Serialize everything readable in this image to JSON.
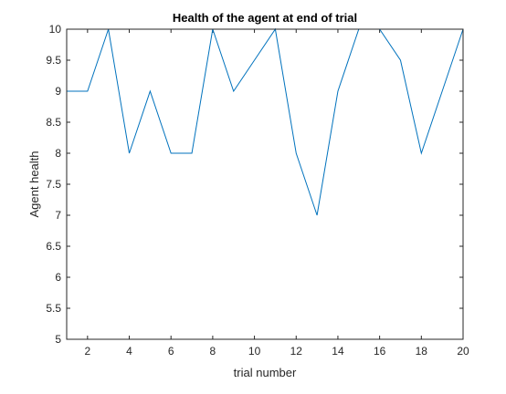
{
  "chart_data": {
    "type": "line",
    "title": "Health of the agent at end of trial",
    "xlabel": "trial number",
    "ylabel": "Agent health",
    "xlim": [
      1,
      20
    ],
    "ylim": [
      5,
      10
    ],
    "xticks": [
      2,
      4,
      6,
      8,
      10,
      12,
      14,
      16,
      18,
      20
    ],
    "xtick_labels": [
      "2",
      "4",
      "6",
      "8",
      "10",
      "12",
      "14",
      "16",
      "18",
      "20"
    ],
    "yticks": [
      5,
      5.5,
      6,
      6.5,
      7,
      7.5,
      8,
      8.5,
      9,
      9.5,
      10
    ],
    "ytick_labels": [
      "5",
      "5.5",
      "6",
      "6.5",
      "7",
      "7.5",
      "8",
      "8.5",
      "9",
      "9.5",
      "10"
    ],
    "grid": false,
    "series": [
      {
        "x": [
          1,
          2,
          3,
          4,
          5,
          6,
          7,
          8,
          9,
          10,
          11,
          12,
          13,
          14,
          15,
          16,
          17,
          18,
          19,
          20
        ],
        "values": [
          9,
          9,
          10,
          8,
          9,
          8,
          8,
          10,
          9,
          9.5,
          10,
          8,
          7,
          9,
          10,
          10,
          9.5,
          8,
          9,
          10
        ],
        "color": "#0072BD"
      }
    ],
    "axis_color": "#262626"
  }
}
